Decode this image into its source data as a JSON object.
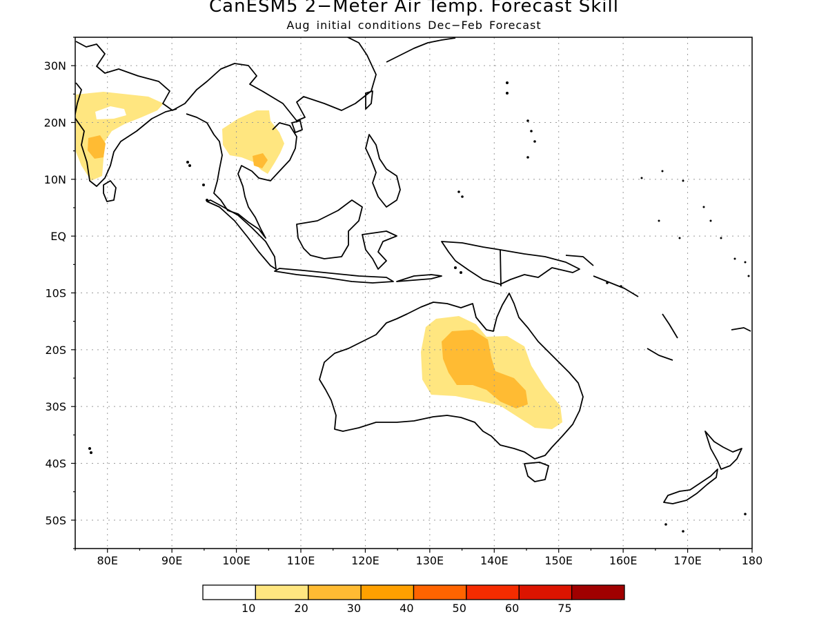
{
  "title": "CanESM5 2−Meter Air Temp. Forecast Skill",
  "subtitle": "Aug initial conditions  Dec−Feb Forecast",
  "map": {
    "projection": "equirectangular",
    "lon_range": [
      75,
      180
    ],
    "lat_range": [
      -55,
      35
    ],
    "gridlines": "dotted",
    "x_ticks": [
      {
        "value": 80,
        "label": "80E"
      },
      {
        "value": 90,
        "label": "90E"
      },
      {
        "value": 100,
        "label": "100E"
      },
      {
        "value": 110,
        "label": "110E"
      },
      {
        "value": 120,
        "label": "120E"
      },
      {
        "value": 130,
        "label": "130E"
      },
      {
        "value": 140,
        "label": "140E"
      },
      {
        "value": 150,
        "label": "150E"
      },
      {
        "value": 160,
        "label": "160E"
      },
      {
        "value": 170,
        "label": "170E"
      },
      {
        "value": 180,
        "label": "180"
      }
    ],
    "y_ticks": [
      {
        "value": 30,
        "label": "30N"
      },
      {
        "value": 20,
        "label": "20N"
      },
      {
        "value": 10,
        "label": "10N"
      },
      {
        "value": 0,
        "label": "EQ"
      },
      {
        "value": -10,
        "label": "10S"
      },
      {
        "value": -20,
        "label": "20S"
      },
      {
        "value": -30,
        "label": "30S"
      },
      {
        "value": -40,
        "label": "40S"
      },
      {
        "value": -50,
        "label": "50S"
      }
    ],
    "skill_regions": [
      {
        "region": "India",
        "level": "10-20"
      },
      {
        "region": "India (central-west)",
        "level": "20-30"
      },
      {
        "region": "Indochina",
        "level": "10-20"
      },
      {
        "region": "Cambodia",
        "level": "20-30"
      },
      {
        "region": "Australia (interior-east)",
        "level": "10-20"
      },
      {
        "region": "Australia (core)",
        "level": "20-30"
      }
    ]
  },
  "colorbar": {
    "colors": [
      "#ffffff",
      "#ffe680",
      "#ffbb33",
      "#ffa000",
      "#ff6400",
      "#f52c00",
      "#dc1400",
      "#a00000"
    ],
    "labels": [
      "10",
      "20",
      "30",
      "40",
      "50",
      "60",
      "75"
    ]
  }
}
